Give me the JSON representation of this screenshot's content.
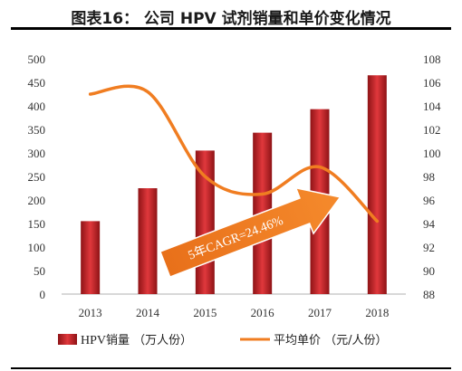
{
  "title": "图表16：   公司 HPV 试剂销量和单价变化情况",
  "chart_data": {
    "type": "bar",
    "categories": [
      "2013",
      "2014",
      "2015",
      "2016",
      "2017",
      "2018"
    ],
    "series": [
      {
        "name": "HPV销量（万人份）",
        "type": "bar",
        "axis": "left",
        "values": [
          155,
          225,
          305,
          343,
          393,
          465
        ],
        "color": "#c9252b"
      },
      {
        "name": "平均单价（元/人份）",
        "type": "line",
        "axis": "right",
        "smooth": true,
        "values": [
          105.0,
          105.2,
          98.0,
          96.5,
          98.8,
          94.2
        ],
        "color": "#f07d21"
      }
    ],
    "y_left": {
      "min": 0,
      "max": 500,
      "step": 50,
      "ticks": [
        "0",
        "50",
        "100",
        "150",
        "200",
        "250",
        "300",
        "350",
        "400",
        "450",
        "500"
      ]
    },
    "y_right": {
      "min": 88,
      "max": 108,
      "step": 2,
      "ticks": [
        "88",
        "90",
        "92",
        "94",
        "96",
        "98",
        "100",
        "102",
        "104",
        "106",
        "108"
      ]
    },
    "annotation": {
      "text": "5年CAGR=24.46%",
      "color": "#f07d21"
    },
    "grid": false,
    "legend_position": "bottom"
  },
  "legend": {
    "bar_label_en": "HPV",
    "bar_label_zh": "销量 （万人份）",
    "line_label": "平均单价 （元/人份）"
  }
}
